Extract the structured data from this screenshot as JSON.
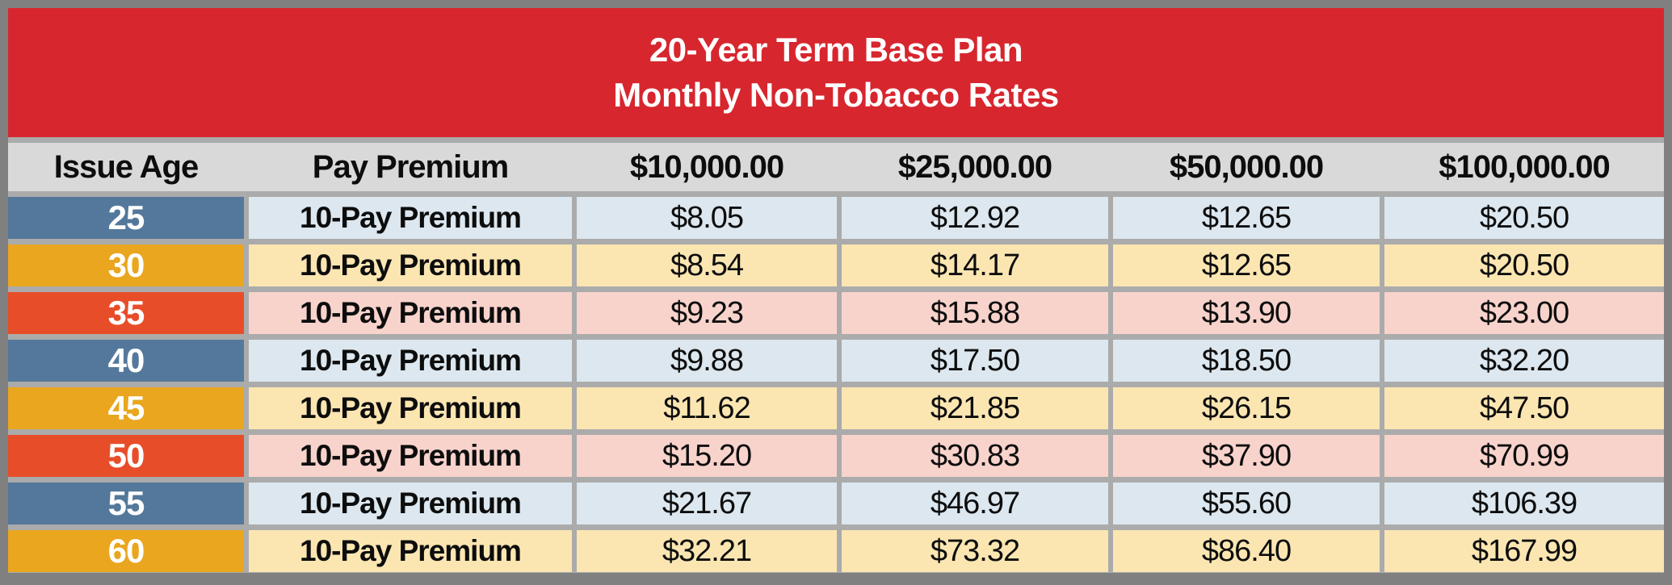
{
  "banner": {
    "title_line1": "20-Year Term Base Plan",
    "title_line2": "Monthly Non-Tobacco Rates",
    "background": "#D7262E",
    "text_color": "#FFFFFF"
  },
  "table": {
    "columns": [
      "Issue Age",
      "Pay Premium",
      "$10,000.00",
      "$25,000.00",
      "$50,000.00",
      "$100,000.00"
    ],
    "rows": [
      {
        "age": "25",
        "premium_type": "10-Pay Premium",
        "rates": [
          "$8.05",
          "$12.92",
          "$12.65",
          "$20.50"
        ],
        "theme": "slate"
      },
      {
        "age": "30",
        "premium_type": "10-Pay Premium",
        "rates": [
          "$8.54",
          "$14.17",
          "$12.65",
          "$20.50"
        ],
        "theme": "gold"
      },
      {
        "age": "35",
        "premium_type": "10-Pay Premium",
        "rates": [
          "$9.23",
          "$15.88",
          "$13.90",
          "$23.00"
        ],
        "theme": "coral"
      },
      {
        "age": "40",
        "premium_type": "10-Pay Premium",
        "rates": [
          "$9.88",
          "$17.50",
          "$18.50",
          "$32.20"
        ],
        "theme": "slate"
      },
      {
        "age": "45",
        "premium_type": "10-Pay Premium",
        "rates": [
          "$11.62",
          "$21.85",
          "$26.15",
          "$47.50"
        ],
        "theme": "gold"
      },
      {
        "age": "50",
        "premium_type": "10-Pay Premium",
        "rates": [
          "$15.20",
          "$30.83",
          "$37.90",
          "$70.99"
        ],
        "theme": "coral"
      },
      {
        "age": "55",
        "premium_type": "10-Pay Premium",
        "rates": [
          "$21.67",
          "$46.97",
          "$55.60",
          "$106.39"
        ],
        "theme": "slate"
      },
      {
        "age": "60",
        "premium_type": "10-Pay Premium",
        "rates": [
          "$32.21",
          "$73.32",
          "$86.40",
          "$167.99"
        ],
        "theme": "gold"
      }
    ],
    "themes": {
      "slate": {
        "age_bg": "#54789B",
        "row_bg": "#DCE7EF"
      },
      "gold": {
        "age_bg": "#E9A61E",
        "row_bg": "#FBE6B2"
      },
      "coral": {
        "age_bg": "#E84D29",
        "row_bg": "#F8D3CC"
      }
    },
    "header_bg": "#D9D9D9",
    "gap_color": "#ABABAB",
    "outer_border_color": "#808080"
  },
  "chart_data": {
    "type": "table",
    "title": "20-Year Term Base Plan",
    "subtitle": "Monthly Non-Tobacco Rates",
    "columns": [
      "Issue Age",
      "Pay Premium",
      "$10,000.00",
      "$25,000.00",
      "$50,000.00",
      "$100,000.00"
    ],
    "rows": [
      [
        "25",
        "10-Pay Premium",
        "$8.05",
        "$12.92",
        "$12.65",
        "$20.50"
      ],
      [
        "30",
        "10-Pay Premium",
        "$8.54",
        "$14.17",
        "$12.65",
        "$20.50"
      ],
      [
        "35",
        "10-Pay Premium",
        "$9.23",
        "$15.88",
        "$13.90",
        "$23.00"
      ],
      [
        "40",
        "10-Pay Premium",
        "$9.88",
        "$17.50",
        "$18.50",
        "$32.20"
      ],
      [
        "45",
        "10-Pay Premium",
        "$11.62",
        "$21.85",
        "$26.15",
        "$47.50"
      ],
      [
        "50",
        "10-Pay Premium",
        "$15.20",
        "$30.83",
        "$37.90",
        "$70.99"
      ],
      [
        "55",
        "10-Pay Premium",
        "$21.67",
        "$46.97",
        "$55.60",
        "$106.39"
      ],
      [
        "60",
        "10-Pay Premium",
        "$32.21",
        "$73.32",
        "$86.40",
        "$167.99"
      ]
    ]
  }
}
